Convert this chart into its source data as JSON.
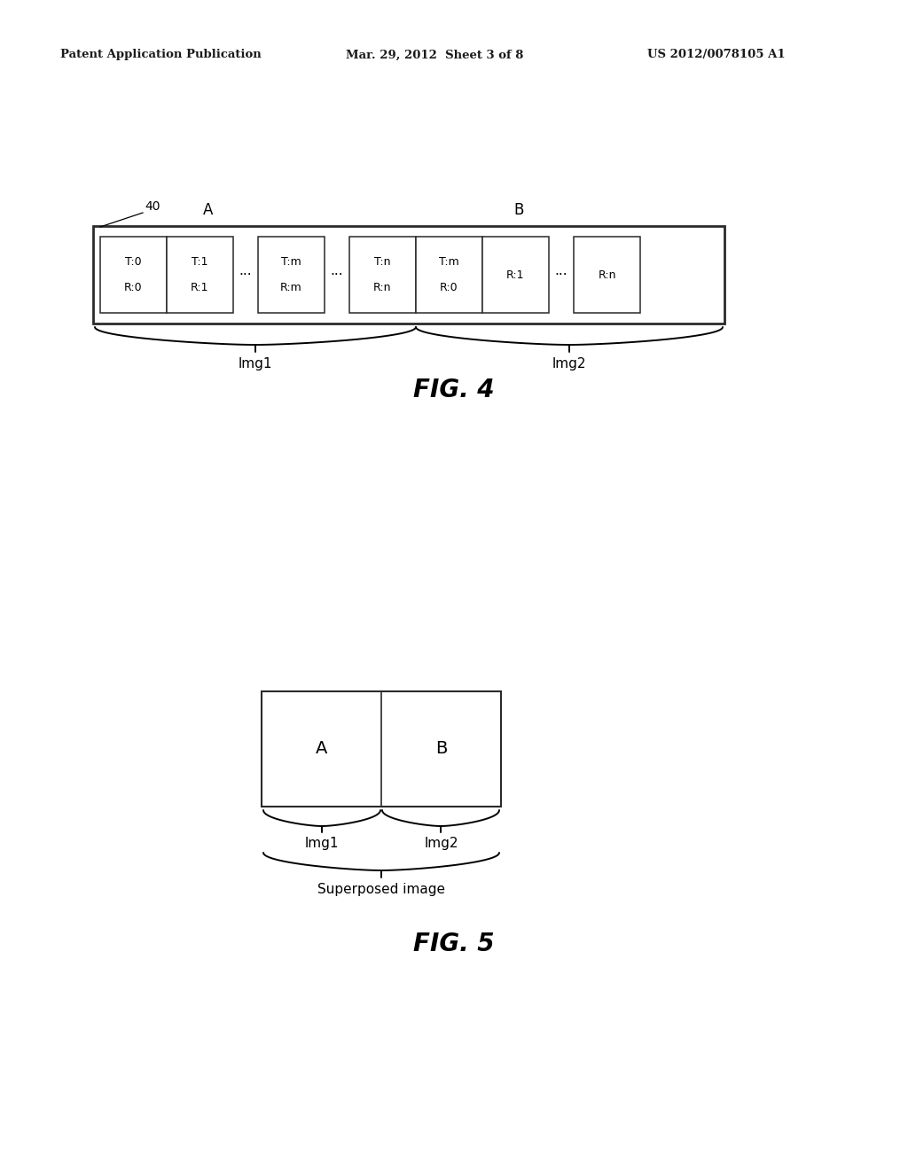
{
  "bg_color": "#ffffff",
  "header_left": "Patent Application Publication",
  "header_mid": "Mar. 29, 2012  Sheet 3 of 8",
  "header_right": "US 2012/0078105 A1",
  "fig4_label": "FIG. 4",
  "fig5_label": "FIG. 5",
  "fig4_ref_label": "40",
  "fig4_A_label": "A",
  "fig4_B_label": "B",
  "fig4_Img1_label": "lmg1",
  "fig4_Img2_label": "lmg2",
  "fig5_A_label": "A",
  "fig5_B_label": "B",
  "fig5_Img1_label": "lmg1",
  "fig5_Img2_label": "lmg2",
  "fig5_superposed_label": "Superposed image",
  "cell_defs": [
    [
      8,
      75,
      "T:0",
      "R:0",
      false
    ],
    [
      83,
      75,
      "T:1",
      "R:1",
      false
    ],
    [
      158,
      28,
      "···",
      "",
      true
    ],
    [
      186,
      75,
      "T:m",
      "R:m",
      false
    ],
    [
      261,
      28,
      "···",
      "",
      true
    ],
    [
      289,
      75,
      "T:n",
      "R:n",
      false
    ],
    [
      364,
      75,
      "T:m",
      "R:0",
      false
    ],
    [
      439,
      75,
      "R:1",
      "",
      false
    ],
    [
      514,
      28,
      "···",
      "",
      true
    ],
    [
      542,
      75,
      "R:n",
      "",
      false
    ]
  ]
}
